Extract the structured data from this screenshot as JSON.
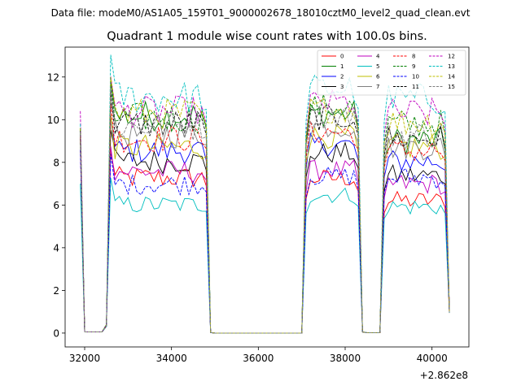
{
  "figure": {
    "suptitle": "Data file: modeM0/AS1A05_159T01_9000002678_18010cztM0_level2_quad_clean.evt",
    "offset_label": "+2.862e8"
  },
  "chart_data": {
    "type": "line",
    "title": "Quadrant 1 module wise count rates with 100.0s bins.",
    "xlabel": "",
    "ylabel": "",
    "x_offset": 286200000,
    "xlim": [
      31550,
      40850
    ],
    "ylim": [
      -0.65,
      13.4
    ],
    "xticks": [
      32000,
      34000,
      36000,
      38000,
      40000
    ],
    "yticks": [
      0,
      2,
      4,
      6,
      8,
      10,
      12
    ],
    "xtick_labels": [
      "32000",
      "34000",
      "36000",
      "38000",
      "40000"
    ],
    "ytick_labels": [
      "0",
      "2",
      "4",
      "6",
      "8",
      "10",
      "12"
    ],
    "bin_size_s": 100,
    "segments": [
      {
        "start": 31900,
        "end": 34900,
        "nbins": 31
      },
      {
        "start": 35000,
        "end": 37000,
        "nbins": 21
      },
      {
        "start": 37100,
        "end": 38400,
        "nbins": 14
      },
      {
        "start": 38500,
        "end": 38800,
        "nbins": 4
      },
      {
        "start": 38900,
        "end": 40400,
        "nbins": 16
      }
    ],
    "series": [
      {
        "name": "0",
        "color": "#ff0000",
        "dash": "solid",
        "levels": [
          9.2,
          7.5,
          7.4,
          6.4
        ]
      },
      {
        "name": "1",
        "color": "#008000",
        "dash": "solid",
        "levels": [
          9.6,
          10.5,
          10.5,
          9.3
        ]
      },
      {
        "name": "2",
        "color": "#0000ff",
        "dash": "solid",
        "levels": [
          9.0,
          8.8,
          9.0,
          8.3
        ]
      },
      {
        "name": "3",
        "color": "#000000",
        "dash": "solid",
        "levels": [
          9.2,
          8.3,
          8.6,
          7.6
        ]
      },
      {
        "name": "4",
        "color": "#bf00bf",
        "dash": "solid",
        "levels": [
          8.6,
          7.8,
          7.8,
          7.2
        ]
      },
      {
        "name": "5",
        "color": "#00bfbf",
        "dash": "solid",
        "levels": [
          7.0,
          6.2,
          6.6,
          6.1
        ]
      },
      {
        "name": "6",
        "color": "#bfbf00",
        "dash": "solid",
        "levels": [
          9.0,
          9.0,
          9.4,
          9.0
        ]
      },
      {
        "name": "7",
        "color": "#808080",
        "dash": "solid",
        "levels": [
          9.4,
          9.6,
          9.9,
          9.0
        ]
      },
      {
        "name": "8",
        "color": "#ff0000",
        "dash": "dashed",
        "levels": [
          9.2,
          9.4,
          9.6,
          8.8
        ]
      },
      {
        "name": "9",
        "color": "#008000",
        "dash": "dashed",
        "levels": [
          9.6,
          10.4,
          10.8,
          10.1
        ]
      },
      {
        "name": "10",
        "color": "#0000ff",
        "dash": "dashed",
        "levels": [
          8.6,
          7.2,
          7.5,
          7.5
        ]
      },
      {
        "name": "11",
        "color": "#000000",
        "dash": "dashed",
        "levels": [
          9.5,
          10.1,
          10.3,
          9.4
        ]
      },
      {
        "name": "12",
        "color": "#bf00bf",
        "dash": "dashed",
        "levels": [
          10.4,
          10.7,
          11.0,
          10.6
        ]
      },
      {
        "name": "13",
        "color": "#00bfbf",
        "dash": "dashed",
        "levels": [
          9.8,
          11.4,
          11.7,
          11.3
        ]
      },
      {
        "name": "14",
        "color": "#bfbf00",
        "dash": "dashed",
        "levels": [
          9.6,
          10.6,
          10.7,
          10.2
        ]
      },
      {
        "name": "15",
        "color": "#808080",
        "dash": "dashed",
        "levels": [
          9.4,
          10.0,
          10.4,
          9.6
        ]
      }
    ],
    "legend_position": "upper right",
    "legend_columns": 4
  }
}
